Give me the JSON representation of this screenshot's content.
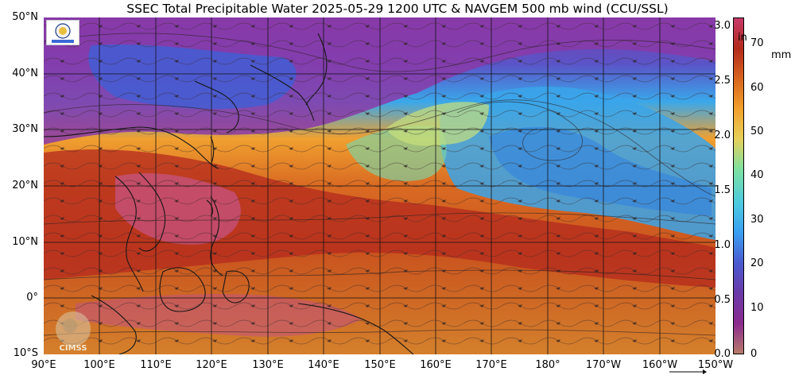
{
  "title": "SSEC Total Precipitable Water  2025-05-29 1200 UTC & NAVGEM 500 mb wind (CCU/SSL)",
  "latitude_labels": [
    "50°N",
    "40°N",
    "30°N",
    "20°N",
    "10°N",
    "0°",
    "10°S"
  ],
  "longitude_labels": [
    "90°E",
    "100°E",
    "110°E",
    "120°E",
    "130°E",
    "140°E",
    "150°E",
    "160°E",
    "170°E",
    "180°",
    "170°W",
    "160°W",
    "150°W"
  ],
  "colorbar": {
    "inch_unit": "in",
    "inch_ticks": [
      "3.0",
      "2.5",
      "2.0",
      "1.5",
      "1.0",
      "0.5",
      "0.0"
    ],
    "mm_unit": "mm",
    "mm_ticks": [
      "70",
      "60",
      "50",
      "40",
      "30",
      "20",
      "10",
      "0"
    ],
    "colors": [
      "#b77a6a",
      "#8a2b8e",
      "#6a3aa8",
      "#4a5ad0",
      "#3a9ef0",
      "#4ccbe0",
      "#7ee0a0",
      "#e6d05a",
      "#f2a02a",
      "#d8641e",
      "#b22a1c",
      "#c83a6a"
    ]
  },
  "logos": {
    "top_left": "agency-emblem-icon",
    "bottom_left": "CIMSS"
  }
}
